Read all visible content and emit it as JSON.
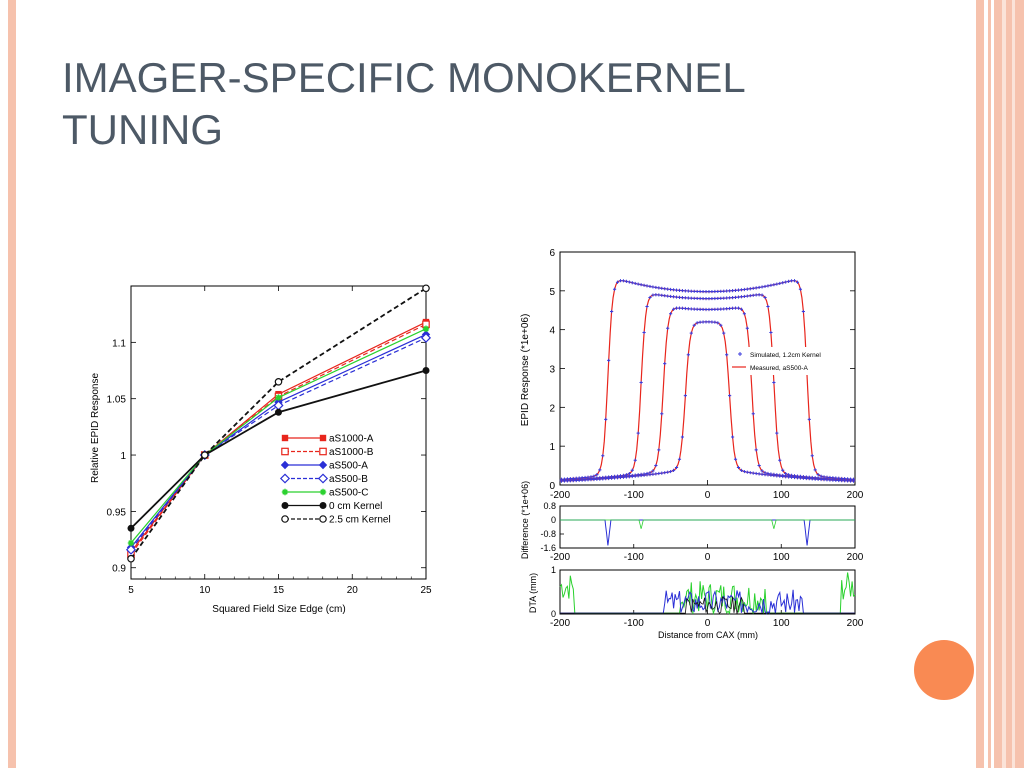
{
  "slide": {
    "title_line1": "IMAGER-SPECIFIC MONOKERNEL",
    "title_line2": "TUNING",
    "accent_color": "#f98a53",
    "border_color": "#f6c2ad"
  },
  "chart_data": [
    {
      "type": "line",
      "xlabel": "Squared Field Size Edge (cm)",
      "ylabel": "Relative EPID Response",
      "xlim": [
        5,
        25
      ],
      "ylim": [
        0.9,
        1.15
      ],
      "x_ticks": [
        "5",
        "10",
        "15",
        "20",
        "25"
      ],
      "y_ticks": [
        "0.9",
        "0.95",
        "1",
        "1.05",
        "1.1"
      ],
      "legend_position": "lower-right",
      "x": [
        5,
        10,
        15,
        25
      ],
      "series": [
        {
          "name": "aS1000-A",
          "color": "#e8251c",
          "dash": "solid",
          "marker": "square-filled",
          "values": [
            0.914,
            1.0,
            1.054,
            1.118
          ]
        },
        {
          "name": "aS1000-B",
          "color": "#e8251c",
          "dash": "dashed",
          "marker": "square-open",
          "values": [
            0.912,
            1.0,
            1.052,
            1.116
          ]
        },
        {
          "name": "aS500-A",
          "color": "#2a2fd6",
          "dash": "solid",
          "marker": "diamond-filled",
          "values": [
            0.918,
            1.0,
            1.047,
            1.107
          ]
        },
        {
          "name": "aS500-B",
          "color": "#2a2fd6",
          "dash": "dashed",
          "marker": "diamond-open",
          "values": [
            0.916,
            1.0,
            1.044,
            1.104
          ]
        },
        {
          "name": "aS500-C",
          "color": "#2ad12e",
          "dash": "solid",
          "marker": "star",
          "values": [
            0.922,
            1.0,
            1.051,
            1.112
          ]
        },
        {
          "name": "0 cm Kernel",
          "color": "#111111",
          "dash": "solid",
          "marker": "circle-filled",
          "values": [
            0.935,
            1.0,
            1.038,
            1.075
          ]
        },
        {
          "name": "2.5 cm Kernel",
          "color": "#111111",
          "dash": "dashed",
          "marker": "circle-open",
          "values": [
            0.908,
            1.0,
            1.065,
            1.148
          ]
        }
      ]
    },
    {
      "type": "line",
      "panels": [
        {
          "id": "response",
          "ylabel": "EPID Response (*1e+06)",
          "xlim": [
            -200,
            200
          ],
          "ylim": [
            0,
            6
          ],
          "x_ticks": [
            "-200",
            "-100",
            "0",
            "100",
            "200"
          ],
          "y_ticks": [
            "0",
            "1",
            "2",
            "3",
            "4",
            "5",
            "6"
          ],
          "legend": [
            "Simulated, 1.2cm Kernel",
            "Measured, aS500-A"
          ],
          "profiles": [
            {
              "half_width": 135,
              "center": 4.98,
              "edge": 5.38,
              "tail": 0.25
            },
            {
              "half_width": 90,
              "center": 4.8,
              "edge": 4.98,
              "tail": 0.3
            },
            {
              "half_width": 60,
              "center": 4.52,
              "edge": 4.62,
              "tail": 0.35
            },
            {
              "half_width": 30,
              "center": 4.2,
              "edge": 4.2,
              "tail": 0.4
            }
          ]
        },
        {
          "id": "difference",
          "ylabel": "Difference (*1e+06)",
          "xlim": [
            -200,
            200
          ],
          "ylim": [
            -1.6,
            0.8
          ],
          "x_ticks": [
            "-200",
            "-100",
            "0",
            "100",
            "200"
          ],
          "y_ticks": [
            "0.8",
            "0",
            "-0.8",
            "-1.6"
          ]
        },
        {
          "id": "dta",
          "ylabel": "DTA (mm)",
          "xlabel": "Distance from CAX (mm)",
          "xlim": [
            -200,
            200
          ],
          "ylim": [
            0,
            1
          ],
          "x_ticks": [
            "-200",
            "-100",
            "0",
            "100",
            "200"
          ],
          "y_ticks": [
            "1",
            "0"
          ]
        }
      ]
    }
  ]
}
